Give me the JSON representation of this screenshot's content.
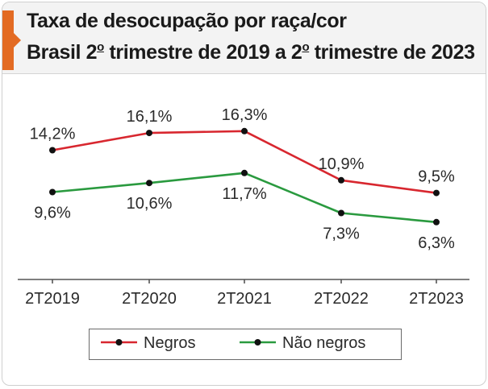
{
  "header": {
    "title": "Taxa de desocupação por raça/cor",
    "subtitle_prefix": "Brasil 2",
    "subtitle_mid": " trimestre de 2019 a 2",
    "subtitle_suffix": " trimestre de 2023",
    "ordinal": "o"
  },
  "colors": {
    "accent": "#e36b23",
    "negros": "#d8272f",
    "nao_negros": "#2a9a3f",
    "marker": "#111111"
  },
  "chart_data": {
    "type": "line",
    "title": "Taxa de desocupação por raça/cor",
    "subtitle": "Brasil 2º trimestre de 2019 a 2º trimestre de 2023",
    "categories": [
      "2T2019",
      "2T2020",
      "2T2021",
      "2T2022",
      "2T2023"
    ],
    "series": [
      {
        "name": "Negros",
        "color": "#d8272f",
        "values": [
          14.2,
          16.1,
          16.3,
          10.9,
          9.5
        ],
        "labels": [
          "14,2%",
          "16,1%",
          "16,3%",
          "10,9%",
          "9,5%"
        ],
        "label_side": [
          "above",
          "above",
          "above",
          "above",
          "above"
        ]
      },
      {
        "name": "Não negros",
        "color": "#2a9a3f",
        "values": [
          9.6,
          10.6,
          11.7,
          7.3,
          6.3
        ],
        "labels": [
          "9,6%",
          "10,6%",
          "11,7%",
          "7,3%",
          "6,3%"
        ],
        "label_side": [
          "below",
          "below",
          "below",
          "below",
          "below"
        ]
      }
    ],
    "ylim": [
      0,
      18
    ],
    "grid": false,
    "legend_position": "bottom"
  }
}
